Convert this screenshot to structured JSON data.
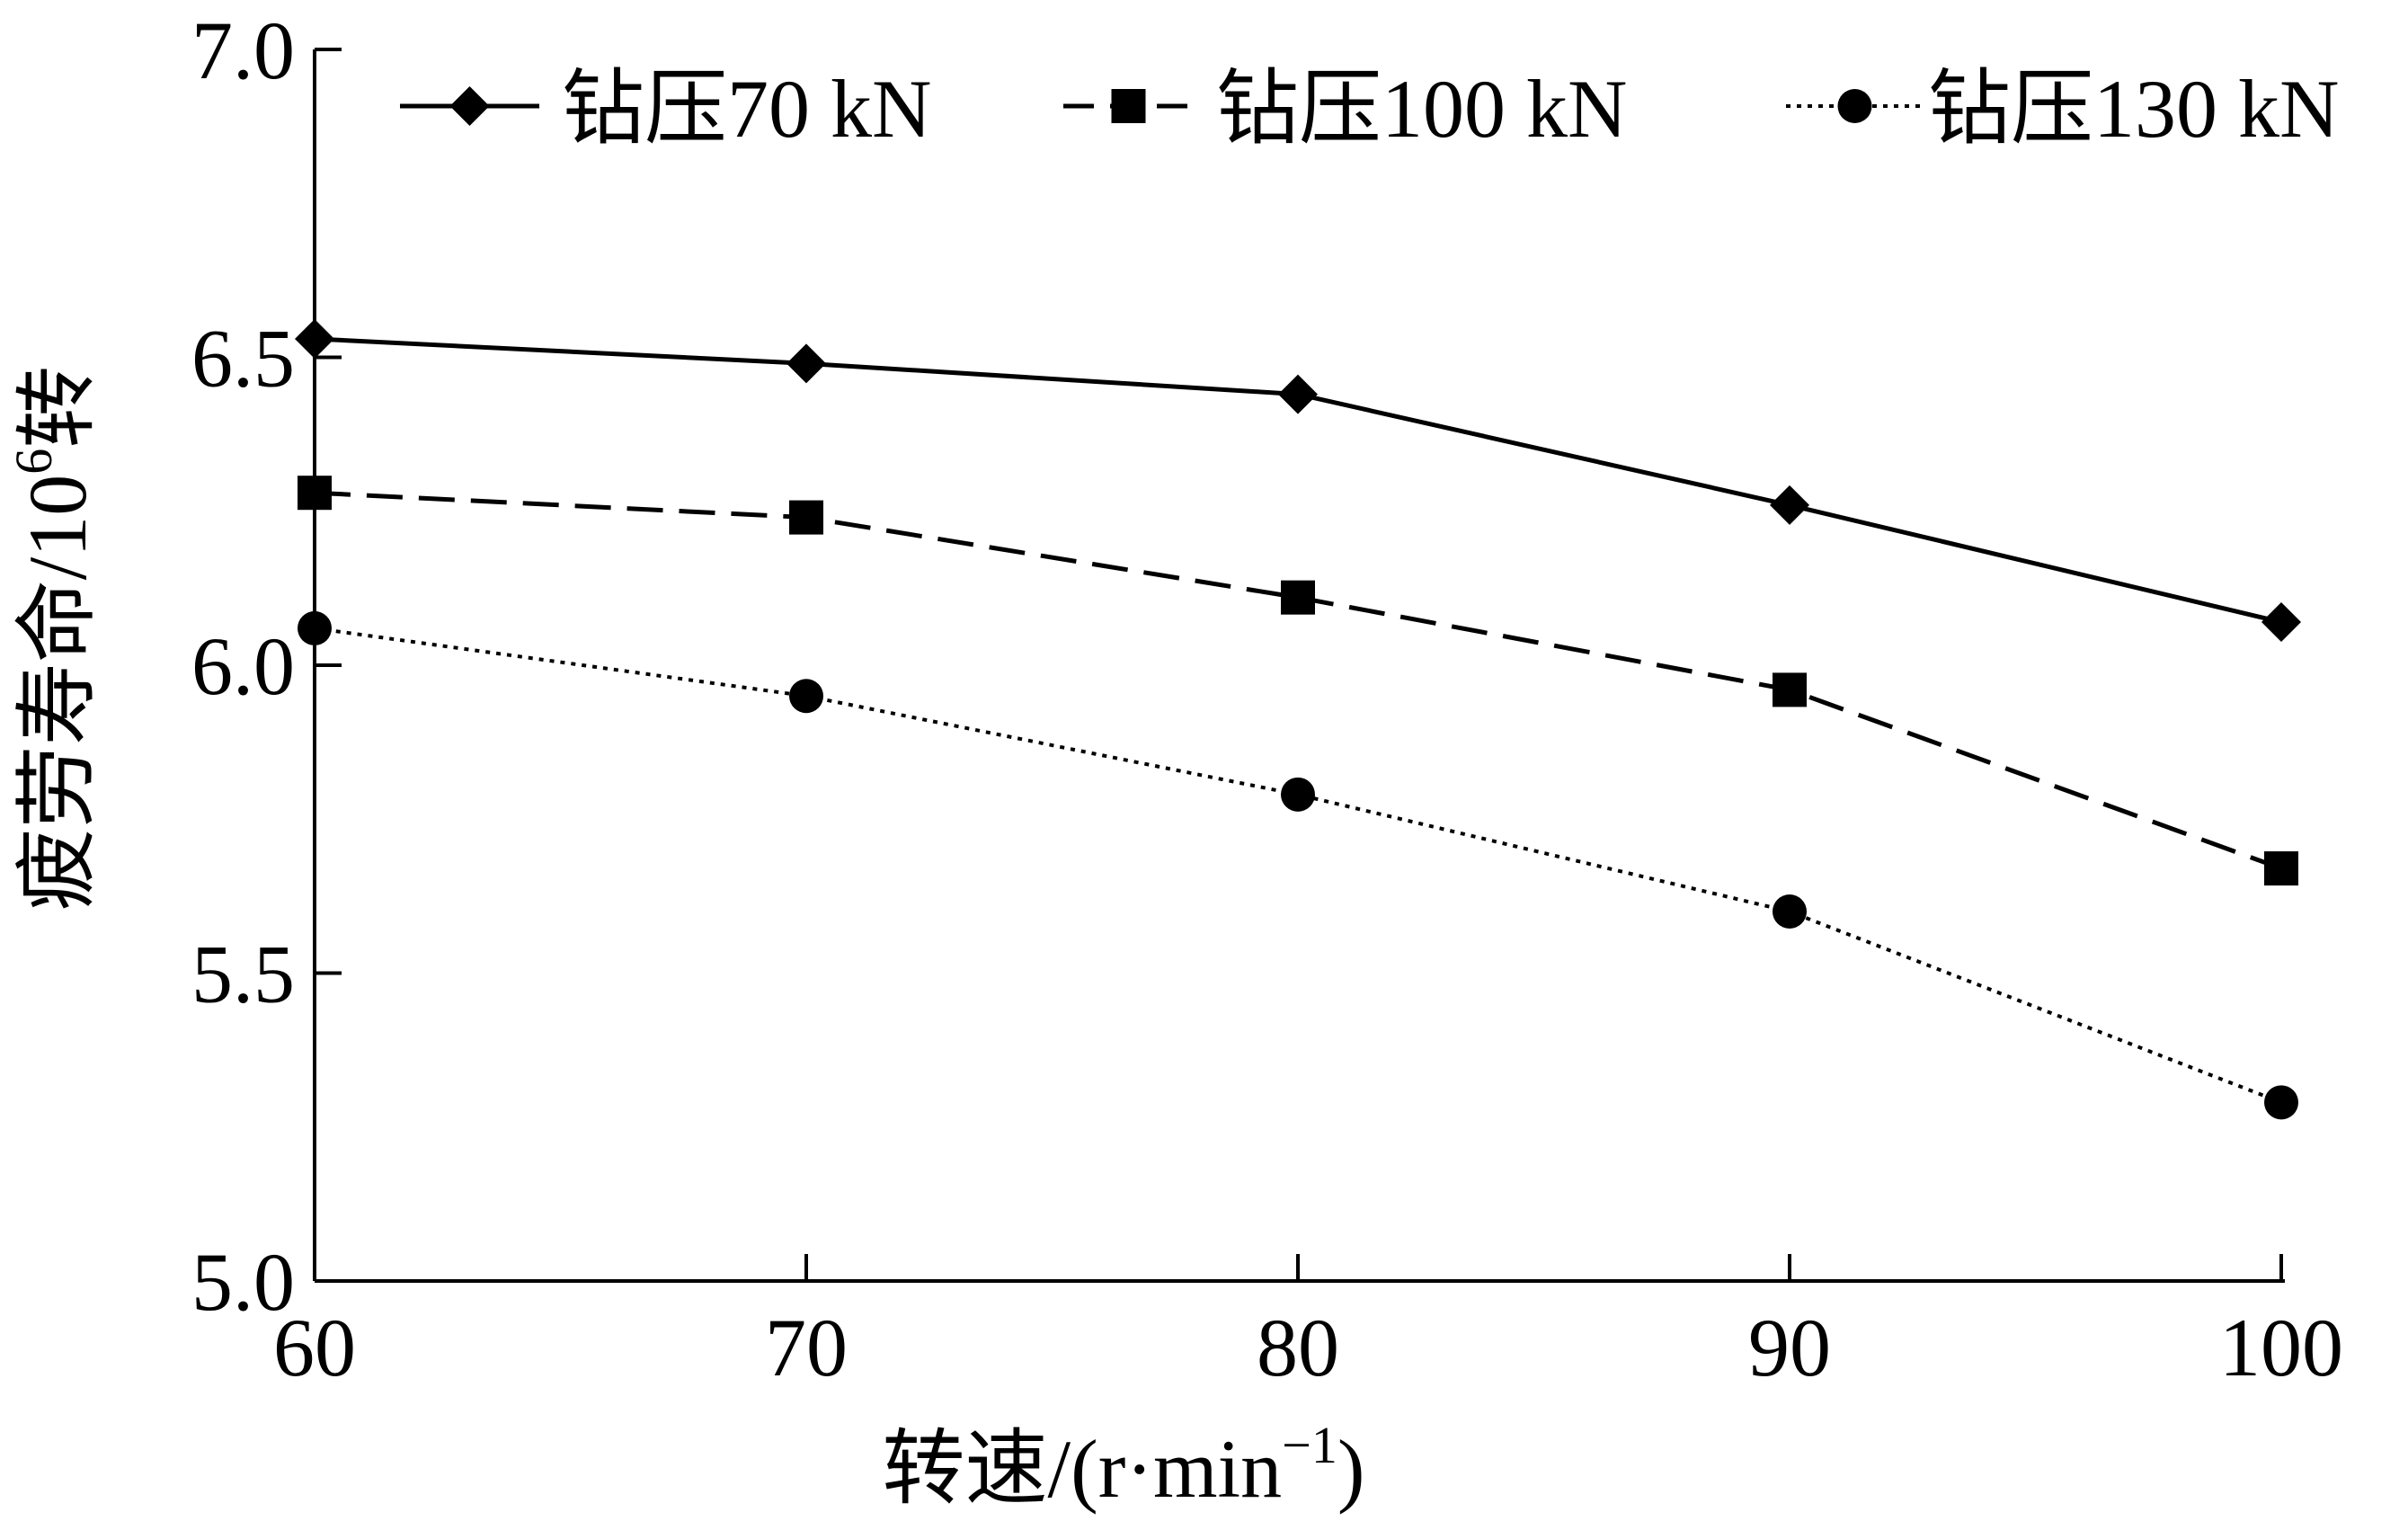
{
  "chart_data": {
    "type": "line",
    "x": [
      60,
      70,
      80,
      90,
      100
    ],
    "xlim": [
      60,
      100
    ],
    "ylim": [
      5.0,
      7.0
    ],
    "x_ticks": [
      "60",
      "70",
      "80",
      "90",
      "100"
    ],
    "y_ticks": [
      "5.0",
      "5.5",
      "6.0",
      "6.5",
      "7.0"
    ],
    "xlabel": "转速/(r·min",
    "xlabel_sup": "−1",
    "xlabel_end": ")",
    "ylabel": "疲劳寿命/10",
    "ylabel_sup": "6",
    "ylabel_end": "转",
    "grid": false,
    "legend_position": "top",
    "series": [
      {
        "name": "钻压70 kN",
        "values": [
          6.53,
          6.49,
          6.44,
          6.26,
          6.07
        ],
        "marker": "diamond",
        "line": "solid"
      },
      {
        "name": "钻压100 kN",
        "values": [
          6.28,
          6.24,
          6.11,
          5.96,
          5.67
        ],
        "marker": "square",
        "line": "dashed"
      },
      {
        "name": "钻压130 kN",
        "values": [
          6.06,
          5.95,
          5.79,
          5.6,
          5.29
        ],
        "marker": "circle",
        "line": "dotted"
      }
    ]
  }
}
